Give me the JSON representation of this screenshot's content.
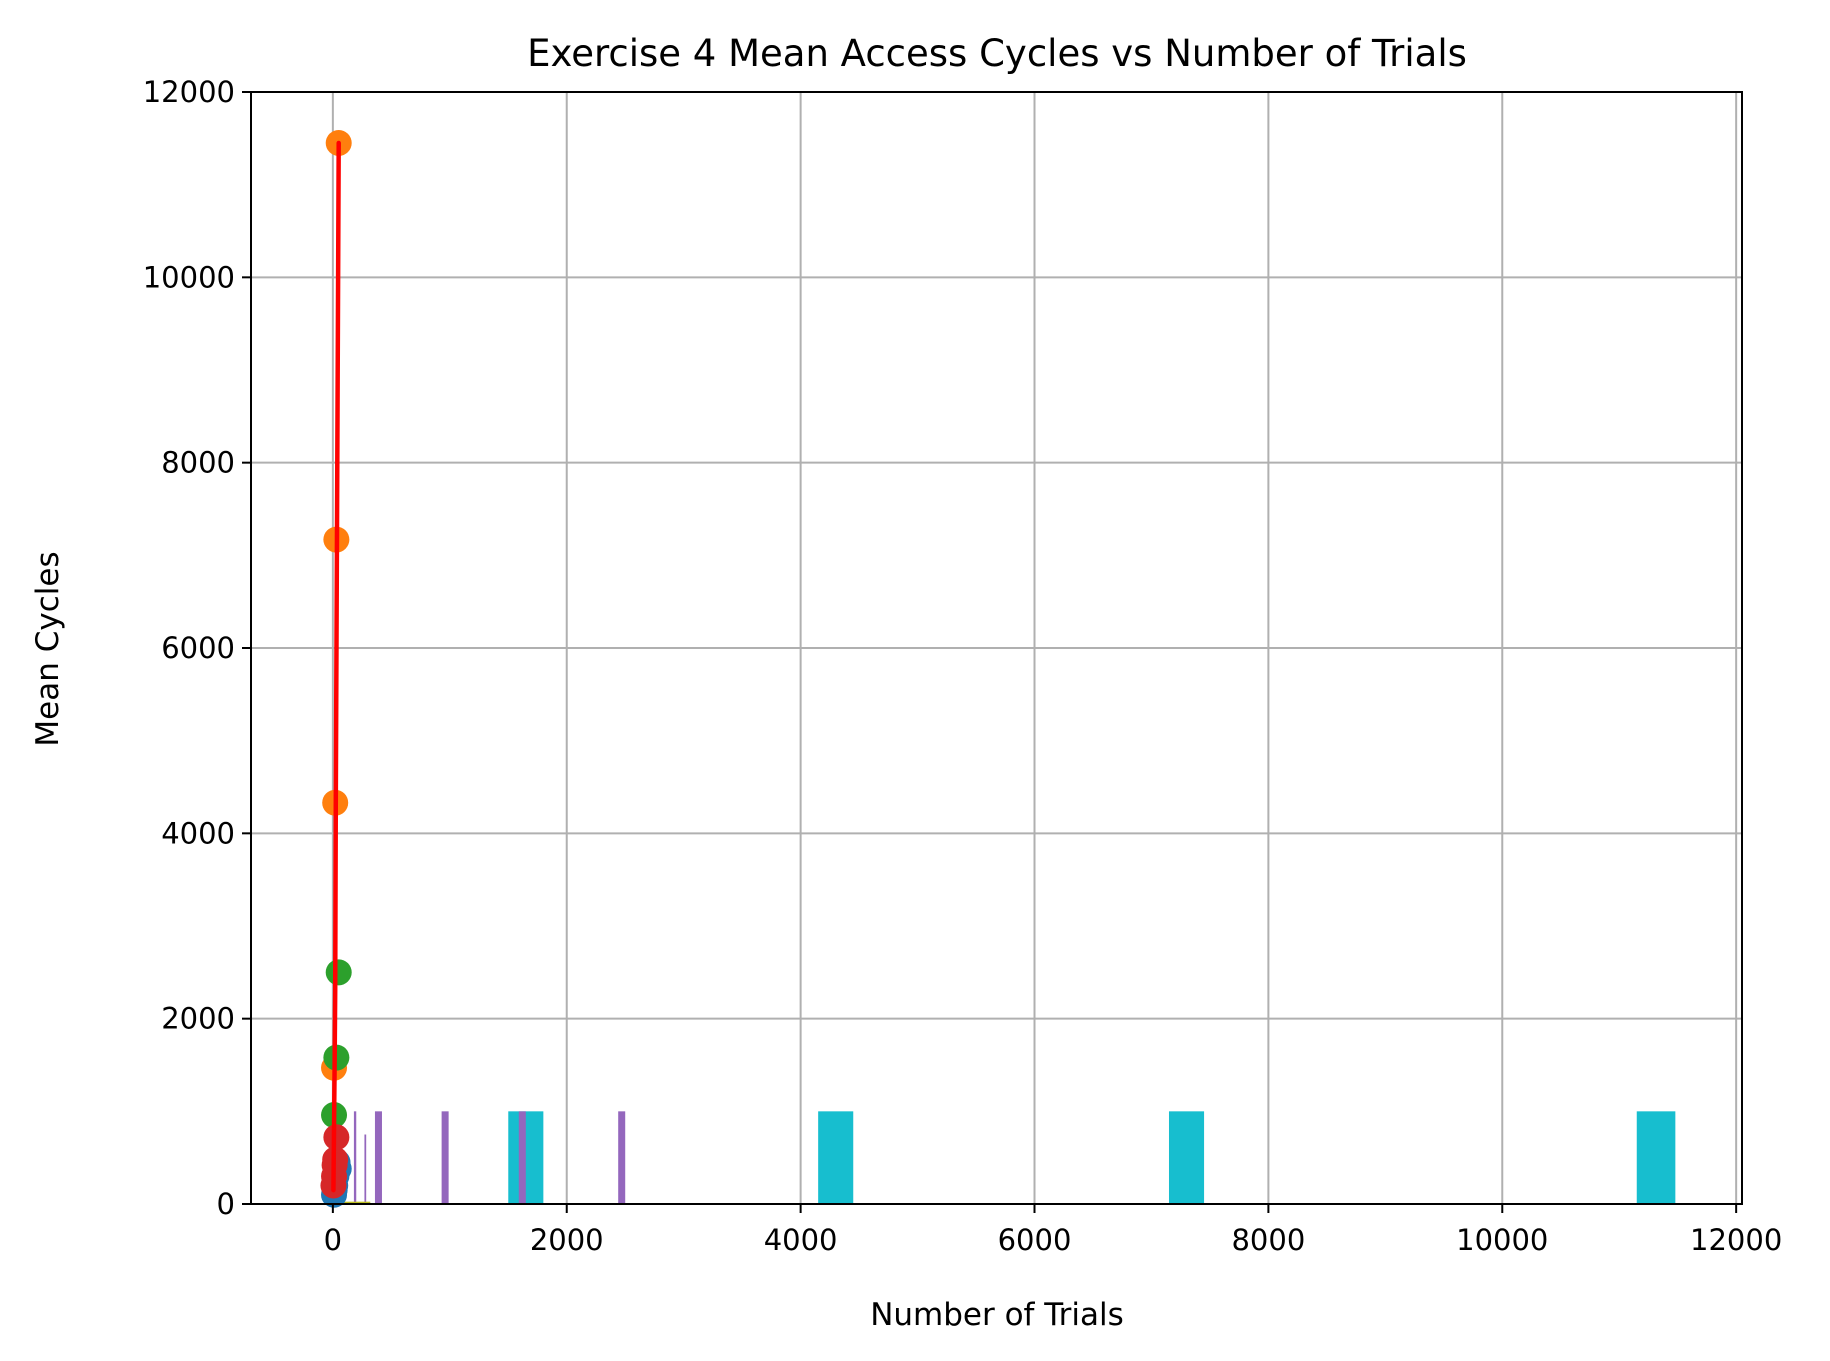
{
  "chart_data": {
    "type": "scatter",
    "title": "Exercise 4 Mean Access Cycles vs Number of Trials",
    "xlabel": "Number of Trials",
    "ylabel": "Mean Cycles",
    "xlim": [
      -700,
      12050
    ],
    "ylim": [
      0,
      12000
    ],
    "xticks": [
      0,
      2000,
      4000,
      6000,
      8000,
      10000,
      12000
    ],
    "yticks": [
      0,
      2000,
      4000,
      6000,
      8000,
      10000,
      12000
    ],
    "grid": true,
    "colors": {
      "blue": "#1f77b4",
      "orange": "#ff7f0e",
      "green": "#2ca02c",
      "red": "#d62728",
      "purple": "#9467bd",
      "olive": "#bcbd22",
      "cyan": "#17becf",
      "fit_line": "#ff0000",
      "grid": "#b0b0b0"
    },
    "scatter_series": [
      {
        "color": "blue",
        "points": [
          [
            10,
            100
          ],
          [
            20,
            200
          ],
          [
            30,
            300
          ],
          [
            40,
            450
          ],
          [
            50,
            380
          ],
          [
            15,
            150
          ]
        ]
      },
      {
        "color": "orange",
        "points": [
          [
            10,
            1470
          ],
          [
            20,
            4330
          ],
          [
            30,
            7170
          ],
          [
            50,
            11450
          ]
        ]
      },
      {
        "color": "green",
        "points": [
          [
            10,
            960
          ],
          [
            30,
            1580
          ],
          [
            50,
            2500
          ]
        ]
      },
      {
        "color": "red",
        "points": [
          [
            5,
            200
          ],
          [
            10,
            300
          ],
          [
            20,
            480
          ],
          [
            30,
            720
          ],
          [
            15,
            420
          ]
        ]
      }
    ],
    "fit_line": {
      "color": "fit_line",
      "points": [
        [
          5,
          150
        ],
        [
          15,
          1500
        ],
        [
          20,
          2300
        ],
        [
          25,
          4300
        ],
        [
          35,
          7170
        ],
        [
          50,
          11450
        ]
      ]
    },
    "bars": [
      {
        "color": "cyan",
        "x0": 1500,
        "x1": 1800,
        "value": 1000
      },
      {
        "color": "cyan",
        "x0": 4150,
        "x1": 4450,
        "value": 1000
      },
      {
        "color": "cyan",
        "x0": 7150,
        "x1": 7450,
        "value": 1000
      },
      {
        "color": "cyan",
        "x0": 11150,
        "x1": 11480,
        "value": 1000
      },
      {
        "color": "purple",
        "x0": 360,
        "x1": 420,
        "value": 1000
      },
      {
        "color": "purple",
        "x0": 930,
        "x1": 990,
        "value": 1000
      },
      {
        "color": "purple",
        "x0": 1590,
        "x1": 1650,
        "value": 1000
      },
      {
        "color": "purple",
        "x0": 2440,
        "x1": 2500,
        "value": 1000
      },
      {
        "color": "purple",
        "x0": 180,
        "x1": 200,
        "value": 1000
      },
      {
        "color": "purple",
        "x0": 270,
        "x1": 285,
        "value": 750
      },
      {
        "color": "olive",
        "x0": 50,
        "x1": 320,
        "value": 25
      }
    ]
  }
}
